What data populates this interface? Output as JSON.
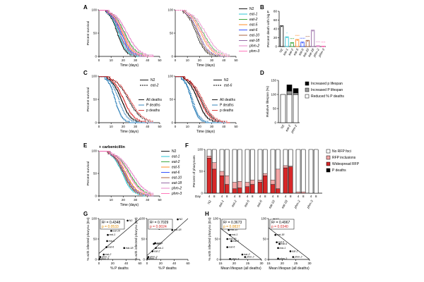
{
  "strains": {
    "names": [
      "N2",
      "eat-1",
      "eat-2",
      "eat-5",
      "eat-6",
      "eat-10",
      "eat-18",
      "phm-2",
      "phm-3"
    ],
    "colors": [
      "#000000",
      "#17becf",
      "#2ca02c",
      "#ff7f0e",
      "#1f3fff",
      "#a0522d",
      "#8b5a9b",
      "#e377c2",
      "#ff69b4"
    ]
  },
  "panels": {
    "A": {
      "label": "A",
      "xlabel": "Time (days)",
      "ylabel": "Percent survival",
      "xticks": [
        0,
        10,
        20,
        30,
        40,
        50
      ],
      "yticks": [
        0,
        50,
        100
      ]
    },
    "B": {
      "label": "B",
      "ylabel": "Percent death with big P",
      "categories": [
        "N2",
        "eat-1",
        "eat-2",
        "eat-5",
        "eat-6",
        "eat-10",
        "eat-18",
        "phm-2",
        "phm-3"
      ],
      "values": [
        47,
        22,
        9,
        16,
        10,
        14,
        37,
        2,
        1
      ],
      "stars": [
        "",
        "*",
        "****",
        "****",
        "*****",
        "****",
        "",
        "****",
        "****"
      ],
      "yticks": [
        0,
        20,
        40,
        60,
        80
      ]
    },
    "C": {
      "label": "C",
      "xlabel": "Time (days)",
      "ylabel": "Percent survival",
      "xticks": [
        0,
        10,
        20,
        30,
        40,
        50
      ],
      "yticks": [
        0,
        50,
        100
      ],
      "left_legend": [
        "N2",
        "eat-2"
      ],
      "right_legend": [
        "N2",
        "eat-6"
      ],
      "death_legend": [
        "All deaths",
        "P deaths",
        "p deaths"
      ]
    },
    "D": {
      "label": "D",
      "ylabel": "Relative lifespan (%)",
      "categories": [
        "N2",
        "eat-2",
        "phm-2"
      ],
      "base": [
        100,
        100,
        100
      ],
      "increased_p": [
        0,
        22,
        15
      ],
      "increased_P": [
        0,
        12,
        6
      ],
      "yticks": [
        0,
        50,
        100,
        150
      ],
      "legend": [
        "Increased p lifespan",
        "Increased P lifespan",
        "Reduced % P deaths"
      ]
    },
    "E": {
      "label": "E",
      "title": "+ carbenicillin",
      "xlabel": "Time (days)",
      "ylabel": "Percent survival",
      "xticks": [
        0,
        10,
        20,
        30,
        40,
        50
      ],
      "yticks": [
        0,
        50,
        100
      ]
    },
    "F": {
      "label": "F",
      "ylabel": "Percent of pharynxes",
      "day_label": "Day",
      "days": [
        "4",
        "8"
      ],
      "categories": [
        "N2",
        "eat-1",
        "eat-2",
        "eat-5",
        "eat-6",
        "eat-10",
        "eat-18",
        "phm-2",
        "phm-3"
      ],
      "p_deaths_pct": [
        [
          0,
          0
        ],
        [
          0,
          0
        ],
        [
          0,
          0
        ],
        [
          0,
          0
        ],
        [
          0,
          0
        ],
        [
          0,
          0
        ],
        [
          0,
          0
        ],
        [
          0,
          0
        ],
        [
          0,
          0
        ]
      ],
      "widespread_pct": [
        [
          80,
          55
        ],
        [
          40,
          20
        ],
        [
          10,
          12
        ],
        [
          15,
          20
        ],
        [
          25,
          40
        ],
        [
          20,
          10
        ],
        [
          58,
          60
        ],
        [
          0,
          0
        ],
        [
          0,
          0
        ]
      ],
      "inclusions_pct": [
        [
          5,
          15
        ],
        [
          10,
          20
        ],
        [
          15,
          15
        ],
        [
          10,
          10
        ],
        [
          5,
          5
        ],
        [
          10,
          45
        ],
        [
          5,
          2
        ],
        [
          3,
          3
        ],
        [
          0,
          0
        ]
      ],
      "legend": [
        "No RFP foci",
        "RFP inclusions",
        "Widespread RFP",
        "P deaths"
      ],
      "yticks": [
        0,
        50,
        100
      ]
    },
    "G": {
      "label": "G",
      "left": {
        "xlabel": "% P deaths",
        "ylabel": "% with infected pharynx (D4)",
        "r2": "R² = 0.4348",
        "p": "p = 0.0533",
        "xticks": [
          0,
          20,
          40,
          60
        ],
        "yticks": [
          0,
          50,
          100
        ],
        "points": [
          {
            "name": "N2",
            "x": 42,
            "y": 95
          },
          {
            "name": "eat-10",
            "x": 18,
            "y": 70
          },
          {
            "name": "eat-1",
            "x": 13,
            "y": 60
          },
          {
            "name": "eat-5",
            "x": 12,
            "y": 45
          },
          {
            "name": "eat-18",
            "x": 37,
            "y": 28
          },
          {
            "name": "eat-6",
            "x": 11,
            "y": 30
          },
          {
            "name": "eat-2",
            "x": 7,
            "y": 12
          },
          {
            "name": "phm-2",
            "x": 2,
            "y": 6
          },
          {
            "name": "phm-3",
            "x": 1,
            "y": 1
          }
        ]
      },
      "right": {
        "xlabel": "% P deaths",
        "ylabel": "% with infected pharynx (D8)",
        "r2": "R² = 0.7029",
        "p": "p = 0.0024",
        "xticks": [
          0,
          20,
          40,
          60
        ],
        "yticks": [
          0,
          50,
          100
        ],
        "points": [
          {
            "name": "N2",
            "x": 45,
            "y": 98
          },
          {
            "name": "eat-10",
            "x": 18,
            "y": 75
          },
          {
            "name": "eat-18",
            "x": 37,
            "y": 72
          },
          {
            "name": "eat-6",
            "x": 12,
            "y": 40
          },
          {
            "name": "eat-5",
            "x": 10,
            "y": 38
          },
          {
            "name": "eat-1",
            "x": 13,
            "y": 28
          },
          {
            "name": "eat-2",
            "x": 8,
            "y": 20
          },
          {
            "name": "phm-2",
            "x": 2,
            "y": 6
          },
          {
            "name": "phm-3",
            "x": 1,
            "y": 2
          }
        ]
      }
    },
    "H": {
      "label": "H",
      "left": {
        "xlabel": "Mean lifespan (all deaths)",
        "ylabel": "% with infected pharynx (D4)",
        "r2": "R² = 0.3673",
        "p": "p = 0.0837",
        "xticks": [
          15,
          20,
          25,
          30
        ],
        "yticks": [
          0,
          50,
          100
        ],
        "points": [
          {
            "name": "N2",
            "x": 17,
            "y": 95
          },
          {
            "name": "eat-10",
            "x": 18,
            "y": 72
          },
          {
            "name": "eat-1",
            "x": 18.5,
            "y": 60
          },
          {
            "name": "eat-18",
            "x": 17.5,
            "y": 50
          },
          {
            "name": "eat-5",
            "x": 19,
            "y": 45
          },
          {
            "name": "eat-6",
            "x": 17.5,
            "y": 30
          },
          {
            "name": "eat-2",
            "x": 23,
            "y": 12
          },
          {
            "name": "phm-2",
            "x": 24,
            "y": 6
          },
          {
            "name": "phm-3",
            "x": 18.5,
            "y": 1
          }
        ]
      },
      "right": {
        "xlabel": "Mean lifespan (all deaths)",
        "ylabel": "",
        "r2": "R² = 0.4967",
        "p": "p = 0.0340",
        "xticks": [
          15,
          20,
          25,
          30
        ],
        "yticks": [
          0,
          50,
          100
        ],
        "points": [
          {
            "name": "N2",
            "x": 17,
            "y": 98
          },
          {
            "name": "eat-10",
            "x": 18,
            "y": 78
          },
          {
            "name": "eat-18",
            "x": 17.5,
            "y": 60
          },
          {
            "name": "eat-6",
            "x": 18,
            "y": 42
          },
          {
            "name": "eat-5",
            "x": 19,
            "y": 38
          },
          {
            "name": "eat-1",
            "x": 18.5,
            "y": 28
          },
          {
            "name": "eat-2",
            "x": 23,
            "y": 20
          },
          {
            "name": "phm-2",
            "x": 24,
            "y": 6
          },
          {
            "name": "phm-3",
            "x": 18.5,
            "y": 2
          }
        ]
      }
    }
  },
  "chart_data": [
    {
      "type": "line",
      "panel": "A-left",
      "title": "",
      "xlabel": "Time (days)",
      "ylabel": "Percent survival",
      "xlim": [
        0,
        50
      ],
      "ylim": [
        0,
        100
      ],
      "series": [
        {
          "name": "N2",
          "median": 15
        },
        {
          "name": "eat-1",
          "median": 16
        },
        {
          "name": "eat-2",
          "median": 21
        },
        {
          "name": "eat-5",
          "median": 19
        },
        {
          "name": "eat-6",
          "median": 18
        },
        {
          "name": "eat-10",
          "median": 17
        },
        {
          "name": "eat-18",
          "median": 17
        },
        {
          "name": "phm-2",
          "median": 23
        },
        {
          "name": "phm-3",
          "median": 20
        }
      ]
    },
    {
      "type": "line",
      "panel": "A-right",
      "title": "",
      "xlabel": "Time (days)",
      "ylabel": "",
      "xlim": [
        0,
        50
      ],
      "ylim": [
        0,
        100
      ],
      "series": [
        {
          "name": "N2",
          "median": 17
        },
        {
          "name": "eat-1",
          "median": 18
        },
        {
          "name": "eat-2",
          "median": 23
        },
        {
          "name": "eat-5",
          "median": 21
        },
        {
          "name": "eat-6",
          "median": 19
        },
        {
          "name": "eat-10",
          "median": 18
        },
        {
          "name": "eat-18",
          "median": 19
        },
        {
          "name": "phm-2",
          "median": 25
        },
        {
          "name": "phm-3",
          "median": 22
        }
      ]
    },
    {
      "type": "bar",
      "panel": "B",
      "categories": [
        "N2",
        "eat-1",
        "eat-2",
        "eat-5",
        "eat-6",
        "eat-10",
        "eat-18",
        "phm-2",
        "phm-3"
      ],
      "values": [
        47,
        22,
        9,
        16,
        10,
        14,
        37,
        2,
        1
      ],
      "ylabel": "Percent death with big P",
      "ylim": [
        0,
        80
      ]
    },
    {
      "type": "line",
      "panel": "C-left",
      "xlabel": "Time (days)",
      "ylabel": "Percent survival",
      "xlim": [
        0,
        50
      ],
      "ylim": [
        0,
        100
      ],
      "series": [
        {
          "name": "N2 All deaths",
          "median": 18
        },
        {
          "name": "N2 P deaths",
          "median": 13
        },
        {
          "name": "N2 p deaths",
          "median": 20
        },
        {
          "name": "eat-2 All deaths",
          "median": 24
        },
        {
          "name": "eat-2 P deaths",
          "median": 16
        },
        {
          "name": "eat-2 p deaths",
          "median": 25
        }
      ]
    },
    {
      "type": "line",
      "panel": "C-right",
      "xlabel": "Time (days)",
      "ylabel": "",
      "xlim": [
        0,
        50
      ],
      "ylim": [
        0,
        100
      ],
      "series": [
        {
          "name": "N2 All deaths",
          "median": 18
        },
        {
          "name": "N2 P deaths",
          "median": 13
        },
        {
          "name": "N2 p deaths",
          "median": 20
        },
        {
          "name": "eat-6 All deaths",
          "median": 21
        },
        {
          "name": "eat-6 P deaths",
          "median": 14
        },
        {
          "name": "eat-6 p deaths",
          "median": 22
        }
      ]
    },
    {
      "type": "bar",
      "panel": "D",
      "categories": [
        "N2",
        "eat-2",
        "phm-2"
      ],
      "series": [
        {
          "name": "Reduced % P deaths",
          "values": [
            100,
            100,
            100
          ]
        },
        {
          "name": "Increased P lifespan",
          "values": [
            0,
            12,
            6
          ]
        },
        {
          "name": "Increased p lifespan",
          "values": [
            0,
            22,
            15
          ]
        }
      ],
      "ylabel": "Relative lifespan (%)",
      "ylim": [
        0,
        150
      ]
    },
    {
      "type": "line",
      "panel": "E",
      "title": "+ carbenicillin",
      "xlabel": "Time (days)",
      "ylabel": "Percent survival",
      "xlim": [
        0,
        50
      ],
      "ylim": [
        0,
        100
      ],
      "series": [
        {
          "name": "N2",
          "median": 20
        },
        {
          "name": "eat-1",
          "median": 19
        },
        {
          "name": "eat-2",
          "median": 25
        },
        {
          "name": "eat-5",
          "median": 22
        },
        {
          "name": "eat-6",
          "median": 21
        },
        {
          "name": "eat-10",
          "median": 20
        },
        {
          "name": "eat-18",
          "median": 21
        },
        {
          "name": "phm-2",
          "median": 27
        },
        {
          "name": "phm-3",
          "median": 24
        }
      ]
    },
    {
      "type": "bar",
      "panel": "F",
      "categories": [
        "N2",
        "eat-1",
        "eat-2",
        "eat-5",
        "eat-6",
        "eat-10",
        "eat-18",
        "phm-2",
        "phm-3"
      ],
      "ylabel": "Percent of pharynxes",
      "ylim": [
        0,
        100
      ]
    },
    {
      "type": "scatter",
      "panel": "G-left",
      "xlabel": "% P deaths",
      "ylabel": "% with infected pharynx (D4)"
    },
    {
      "type": "scatter",
      "panel": "G-right",
      "xlabel": "% P deaths",
      "ylabel": "% with infected pharynx (D8)"
    },
    {
      "type": "scatter",
      "panel": "H-left",
      "xlabel": "Mean lifespan (all deaths)",
      "ylabel": "% with infected pharynx (D4)"
    },
    {
      "type": "scatter",
      "panel": "H-right",
      "xlabel": "Mean lifespan (all deaths)",
      "ylabel": ""
    }
  ]
}
